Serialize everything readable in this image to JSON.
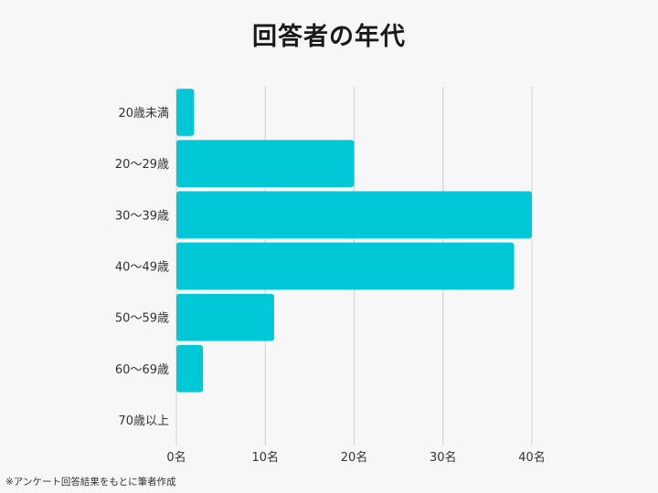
{
  "title": "回答者の年代",
  "footnote": "※アンケート回答結果をもとに筆者作成",
  "chart_data": {
    "type": "bar",
    "orientation": "horizontal",
    "title": "回答者の年代",
    "categories": [
      "20歳未満",
      "20～29歳",
      "30～39歳",
      "40～49歳",
      "50～59歳",
      "60～69歳",
      "70歳以上"
    ],
    "values": [
      2,
      20,
      40,
      38,
      11,
      3,
      0
    ],
    "xlim": [
      0,
      40
    ],
    "xticks": [
      0,
      10,
      20,
      30,
      40
    ],
    "xtick_labels": [
      "0名",
      "10名",
      "20名",
      "30名",
      "40名"
    ],
    "xlabel": "",
    "ylabel": "",
    "grid": "vertical",
    "bar_color": "#00c8d7",
    "grid_color": "#d0d0d0"
  }
}
